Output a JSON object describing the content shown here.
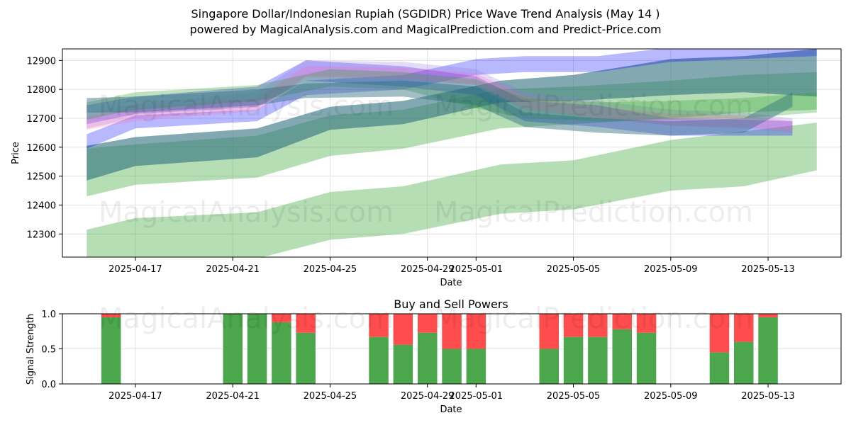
{
  "title_line1": "Singapore Dollar/Indonesian Rupiah (SGDIDR) Price Wave Trend Analysis (May 14 )",
  "title_line2": "powered by MagicalAnalysis.com and MagicalPrediction.com and Predict-Price.com",
  "watermarks": [
    "MagicalAnalysis.com",
    "MagicalPrediction.com"
  ],
  "colors": {
    "green": "#2ca02c",
    "blue": "#0000ff",
    "teal": "#2f6f7f",
    "pink": "#ff69b4",
    "purple": "#9370db",
    "buy": "#4ca64c",
    "sell": "#ff4d4d",
    "grid": "#dcdcdc"
  },
  "chart_data": [
    {
      "type": "area",
      "title": "",
      "xlabel": "Date",
      "ylabel": "Price",
      "x_ticks": [
        "2025-04-17",
        "2025-04-21",
        "2025-04-25",
        "2025-04-29",
        "2025-05-01",
        "2025-05-05",
        "2025-05-09",
        "2025-05-13"
      ],
      "y_ticks": [
        12300,
        12400,
        12500,
        12600,
        12700,
        12800,
        12900
      ],
      "ylim": [
        12220,
        12940
      ],
      "xlim": [
        "2025-04-14",
        "2025-05-16"
      ],
      "grid": true,
      "bands": [
        {
          "color": "green",
          "opacity": 0.35,
          "x": [
            "2025-04-15",
            "2025-04-17",
            "2025-04-22",
            "2025-04-25",
            "2025-04-28",
            "2025-05-02",
            "2025-05-05",
            "2025-05-09",
            "2025-05-12",
            "2025-05-15"
          ],
          "upper": [
            12315,
            12355,
            12375,
            12445,
            12465,
            12540,
            12555,
            12625,
            12655,
            12685
          ],
          "lower": [
            12215,
            12215,
            12215,
            12280,
            12300,
            12370,
            12385,
            12450,
            12465,
            12520
          ]
        },
        {
          "color": "green",
          "opacity": 0.35,
          "x": [
            "2025-04-15",
            "2025-04-17",
            "2025-04-22",
            "2025-04-25",
            "2025-04-28",
            "2025-05-02",
            "2025-05-05",
            "2025-05-09",
            "2025-05-12",
            "2025-05-15"
          ],
          "upper": [
            12595,
            12610,
            12640,
            12710,
            12730,
            12800,
            12810,
            12830,
            12850,
            12860
          ],
          "lower": [
            12430,
            12470,
            12495,
            12570,
            12595,
            12665,
            12680,
            12700,
            12720,
            12730
          ]
        },
        {
          "color": "teal",
          "opacity": 0.6,
          "x": [
            "2025-04-15",
            "2025-04-17",
            "2025-04-22",
            "2025-04-25",
            "2025-04-28",
            "2025-05-02",
            "2025-05-05",
            "2025-05-09",
            "2025-05-12",
            "2025-05-15"
          ],
          "upper": [
            12605,
            12635,
            12665,
            12740,
            12760,
            12830,
            12850,
            12905,
            12915,
            12940
          ],
          "lower": [
            12485,
            12535,
            12565,
            12660,
            12680,
            12755,
            12760,
            12780,
            12790,
            12775
          ]
        },
        {
          "color": "blue",
          "opacity": 0.28,
          "x": [
            "2025-04-15",
            "2025-04-17",
            "2025-04-22",
            "2025-04-24",
            "2025-04-28",
            "2025-05-01",
            "2025-05-03",
            "2025-05-06",
            "2025-05-09",
            "2025-05-12",
            "2025-05-15"
          ],
          "upper": [
            12645,
            12710,
            12730,
            12830,
            12850,
            12905,
            12915,
            12915,
            12945,
            12950,
            12955
          ],
          "lower": [
            12595,
            12665,
            12690,
            12780,
            12800,
            12850,
            12860,
            12860,
            12895,
            12905,
            12915
          ]
        },
        {
          "color": "blue",
          "opacity": 0.28,
          "x": [
            "2025-04-15",
            "2025-04-17",
            "2025-04-22",
            "2025-04-24",
            "2025-04-28",
            "2025-05-01",
            "2025-05-03",
            "2025-05-06",
            "2025-05-09",
            "2025-05-12",
            "2025-05-14"
          ],
          "upper": [
            12745,
            12775,
            12810,
            12900,
            12880,
            12845,
            12760,
            12745,
            12700,
            12695,
            12690
          ],
          "lower": [
            12680,
            12715,
            12740,
            12830,
            12810,
            12780,
            12690,
            12670,
            12640,
            12640,
            12640
          ]
        },
        {
          "color": "purple",
          "opacity": 0.25,
          "x": [
            "2025-04-15",
            "2025-04-17",
            "2025-04-22",
            "2025-04-24",
            "2025-04-28",
            "2025-05-01",
            "2025-05-03",
            "2025-05-06",
            "2025-05-09",
            "2025-05-12",
            "2025-05-14"
          ],
          "upper": [
            12720,
            12750,
            12790,
            12900,
            12895,
            12870,
            12790,
            12760,
            12730,
            12720,
            12700
          ],
          "lower": [
            12665,
            12700,
            12730,
            12845,
            12840,
            12815,
            12730,
            12700,
            12675,
            12665,
            12650
          ]
        },
        {
          "color": "pink",
          "opacity": 0.25,
          "x": [
            "2025-04-15",
            "2025-04-17",
            "2025-04-22",
            "2025-04-24",
            "2025-04-28",
            "2025-05-01",
            "2025-05-03",
            "2025-05-06",
            "2025-05-09",
            "2025-05-12",
            "2025-05-14"
          ],
          "upper": [
            12705,
            12735,
            12770,
            12880,
            12875,
            12855,
            12775,
            12740,
            12715,
            12710,
            12690
          ],
          "lower": [
            12660,
            12690,
            12725,
            12840,
            12835,
            12815,
            12735,
            12700,
            12675,
            12670,
            12655
          ]
        },
        {
          "color": "green",
          "opacity": 0.3,
          "x": [
            "2025-04-15",
            "2025-04-17",
            "2025-04-22",
            "2025-04-25",
            "2025-04-28",
            "2025-05-01",
            "2025-05-03",
            "2025-05-06",
            "2025-05-09",
            "2025-05-12",
            "2025-05-15"
          ],
          "upper": [
            12755,
            12790,
            12815,
            12870,
            12860,
            12835,
            12770,
            12755,
            12760,
            12770,
            12790
          ],
          "lower": [
            12695,
            12730,
            12760,
            12810,
            12800,
            12735,
            12700,
            12690,
            12695,
            12700,
            12720
          ]
        },
        {
          "color": "teal",
          "opacity": 0.45,
          "x": [
            "2025-04-15",
            "2025-04-17",
            "2025-04-22",
            "2025-04-24",
            "2025-04-28",
            "2025-05-01",
            "2025-05-03",
            "2025-05-06",
            "2025-05-09",
            "2025-05-12",
            "2025-05-14"
          ],
          "upper": [
            12770,
            12775,
            12800,
            12820,
            12830,
            12810,
            12720,
            12700,
            12690,
            12700,
            12790
          ],
          "lower": [
            12720,
            12720,
            12745,
            12770,
            12775,
            12745,
            12670,
            12650,
            12640,
            12650,
            12740
          ]
        }
      ]
    },
    {
      "type": "bar",
      "title": "Buy and Sell Powers",
      "xlabel": "Date",
      "ylabel": "Signal Strength",
      "ylim": [
        0,
        1
      ],
      "y_ticks": [
        0.0,
        0.5,
        1.0
      ],
      "y_tick_labels": [
        "0.0",
        "0.5",
        "1.0"
      ],
      "x_ticks": [
        "2025-04-17",
        "2025-04-21",
        "2025-04-25",
        "2025-04-29",
        "2025-05-01",
        "2025-05-05",
        "2025-05-09",
        "2025-05-13"
      ],
      "xlim": [
        "2025-04-14",
        "2025-05-16"
      ],
      "series": [
        {
          "name": "",
          "color": "buy"
        },
        {
          "name": "",
          "color": "sell"
        }
      ],
      "dates": [
        "2025-04-16",
        "2025-04-21",
        "2025-04-22",
        "2025-04-23",
        "2025-04-24",
        "2025-04-27",
        "2025-04-28",
        "2025-04-29",
        "2025-04-30",
        "2025-05-01",
        "2025-05-04",
        "2025-05-05",
        "2025-05-06",
        "2025-05-07",
        "2025-05-08",
        "2025-05-11",
        "2025-05-12",
        "2025-05-13"
      ],
      "buy": [
        0.95,
        1.0,
        1.0,
        0.88,
        0.73,
        0.67,
        0.56,
        0.73,
        0.5,
        0.5,
        0.5,
        0.67,
        0.67,
        0.78,
        0.73,
        0.45,
        0.6,
        0.95
      ]
    }
  ]
}
